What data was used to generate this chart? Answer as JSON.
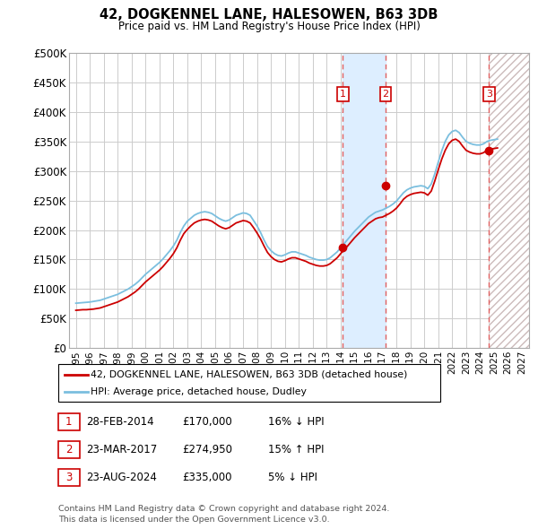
{
  "title": "42, DOGKENNEL LANE, HALESOWEN, B63 3DB",
  "subtitle": "Price paid vs. HM Land Registry's House Price Index (HPI)",
  "ylim": [
    0,
    500000
  ],
  "yticks": [
    0,
    50000,
    100000,
    150000,
    200000,
    250000,
    300000,
    350000,
    400000,
    450000,
    500000
  ],
  "xlim_start": 1994.5,
  "xlim_end": 2027.5,
  "background_color": "#ffffff",
  "grid_color": "#cccccc",
  "hpi_line_color": "#7bbfdf",
  "price_line_color": "#cc0000",
  "sale_marker_color": "#cc0000",
  "transaction_dates": [
    2014.163,
    2017.228,
    2024.644
  ],
  "transaction_prices": [
    170000,
    274950,
    335000
  ],
  "transaction_labels": [
    "1",
    "2",
    "3"
  ],
  "dashed_line_color": "#e06060",
  "shade_color": "#ddeeff",
  "legend_house_label": "42, DOGKENNEL LANE, HALESOWEN, B63 3DB (detached house)",
  "legend_hpi_label": "HPI: Average price, detached house, Dudley",
  "table_entries": [
    {
      "label": "1",
      "date": "28-FEB-2014",
      "price": "£170,000",
      "hpi": "16% ↓ HPI"
    },
    {
      "label": "2",
      "date": "23-MAR-2017",
      "price": "£274,950",
      "hpi": "15% ↑ HPI"
    },
    {
      "label": "3",
      "date": "23-AUG-2024",
      "price": "£335,000",
      "hpi": "5% ↓ HPI"
    }
  ],
  "footnote": "Contains HM Land Registry data © Crown copyright and database right 2024.\nThis data is licensed under the Open Government Licence v3.0.",
  "hpi_data_x": [
    1995.0,
    1995.25,
    1995.5,
    1995.75,
    1996.0,
    1996.25,
    1996.5,
    1996.75,
    1997.0,
    1997.25,
    1997.5,
    1997.75,
    1998.0,
    1998.25,
    1998.5,
    1998.75,
    1999.0,
    1999.25,
    1999.5,
    1999.75,
    2000.0,
    2000.25,
    2000.5,
    2000.75,
    2001.0,
    2001.25,
    2001.5,
    2001.75,
    2002.0,
    2002.25,
    2002.5,
    2002.75,
    2003.0,
    2003.25,
    2003.5,
    2003.75,
    2004.0,
    2004.25,
    2004.5,
    2004.75,
    2005.0,
    2005.25,
    2005.5,
    2005.75,
    2006.0,
    2006.25,
    2006.5,
    2006.75,
    2007.0,
    2007.25,
    2007.5,
    2007.75,
    2008.0,
    2008.25,
    2008.5,
    2008.75,
    2009.0,
    2009.25,
    2009.5,
    2009.75,
    2010.0,
    2010.25,
    2010.5,
    2010.75,
    2011.0,
    2011.25,
    2011.5,
    2011.75,
    2012.0,
    2012.25,
    2012.5,
    2012.75,
    2013.0,
    2013.25,
    2013.5,
    2013.75,
    2014.0,
    2014.25,
    2014.5,
    2014.75,
    2015.0,
    2015.25,
    2015.5,
    2015.75,
    2016.0,
    2016.25,
    2016.5,
    2016.75,
    2017.0,
    2017.25,
    2017.5,
    2017.75,
    2018.0,
    2018.25,
    2018.5,
    2018.75,
    2019.0,
    2019.25,
    2019.5,
    2019.75,
    2020.0,
    2020.25,
    2020.5,
    2020.75,
    2021.0,
    2021.25,
    2021.5,
    2021.75,
    2022.0,
    2022.25,
    2022.5,
    2022.75,
    2023.0,
    2023.25,
    2023.5,
    2023.75,
    2024.0,
    2024.25,
    2024.5,
    2024.75,
    2025.0,
    2025.25
  ],
  "hpi_data_y": [
    76000,
    76500,
    77000,
    77500,
    78000,
    79000,
    80000,
    81000,
    83000,
    85000,
    87000,
    89000,
    91000,
    94000,
    97000,
    100000,
    104000,
    108000,
    113000,
    119000,
    125000,
    130000,
    135000,
    140000,
    145000,
    151000,
    158000,
    165000,
    173000,
    183000,
    196000,
    207000,
    215000,
    220000,
    225000,
    228000,
    230000,
    231000,
    230000,
    228000,
    224000,
    220000,
    217000,
    215000,
    217000,
    221000,
    225000,
    227000,
    229000,
    228000,
    225000,
    216000,
    207000,
    196000,
    183000,
    172000,
    165000,
    160000,
    157000,
    156000,
    158000,
    161000,
    163000,
    163000,
    161000,
    159000,
    157000,
    154000,
    152000,
    150000,
    149000,
    149000,
    150000,
    153000,
    158000,
    163000,
    170000,
    177000,
    184000,
    191000,
    198000,
    204000,
    210000,
    216000,
    222000,
    226000,
    230000,
    232000,
    234000,
    237000,
    240000,
    244000,
    249000,
    256000,
    263000,
    268000,
    271000,
    273000,
    274000,
    275000,
    274000,
    270000,
    278000,
    295000,
    315000,
    334000,
    350000,
    361000,
    367000,
    369000,
    365000,
    357000,
    350000,
    347000,
    345000,
    344000,
    344000,
    346000,
    350000,
    352000,
    353000,
    354000
  ],
  "price_data_x": [
    1995.0,
    1995.25,
    1995.5,
    1995.75,
    1996.0,
    1996.25,
    1996.5,
    1996.75,
    1997.0,
    1997.25,
    1997.5,
    1997.75,
    1998.0,
    1998.25,
    1998.5,
    1998.75,
    1999.0,
    1999.25,
    1999.5,
    1999.75,
    2000.0,
    2000.25,
    2000.5,
    2000.75,
    2001.0,
    2001.25,
    2001.5,
    2001.75,
    2002.0,
    2002.25,
    2002.5,
    2002.75,
    2003.0,
    2003.25,
    2003.5,
    2003.75,
    2004.0,
    2004.25,
    2004.5,
    2004.75,
    2005.0,
    2005.25,
    2005.5,
    2005.75,
    2006.0,
    2006.25,
    2006.5,
    2006.75,
    2007.0,
    2007.25,
    2007.5,
    2007.75,
    2008.0,
    2008.25,
    2008.5,
    2008.75,
    2009.0,
    2009.25,
    2009.5,
    2009.75,
    2010.0,
    2010.25,
    2010.5,
    2010.75,
    2011.0,
    2011.25,
    2011.5,
    2011.75,
    2012.0,
    2012.25,
    2012.5,
    2012.75,
    2013.0,
    2013.25,
    2013.5,
    2013.75,
    2014.0,
    2014.25,
    2014.5,
    2014.75,
    2015.0,
    2015.25,
    2015.5,
    2015.75,
    2016.0,
    2016.25,
    2016.5,
    2016.75,
    2017.0,
    2017.25,
    2017.5,
    2017.75,
    2018.0,
    2018.25,
    2018.5,
    2018.75,
    2019.0,
    2019.25,
    2019.5,
    2019.75,
    2020.0,
    2020.25,
    2020.5,
    2020.75,
    2021.0,
    2021.25,
    2021.5,
    2021.75,
    2022.0,
    2022.25,
    2022.5,
    2022.75,
    2023.0,
    2023.25,
    2023.5,
    2023.75,
    2024.0,
    2024.25,
    2024.5,
    2024.75,
    2025.0,
    2025.25
  ],
  "price_data_y": [
    64000,
    64500,
    65000,
    65000,
    65500,
    66000,
    67000,
    68000,
    70000,
    72000,
    74000,
    76000,
    78000,
    81000,
    84000,
    87000,
    91000,
    95000,
    100000,
    106000,
    112000,
    117000,
    122000,
    127000,
    132000,
    138000,
    145000,
    152000,
    160000,
    170000,
    183000,
    194000,
    201000,
    207000,
    212000,
    215000,
    217000,
    218000,
    217000,
    215000,
    211000,
    207000,
    204000,
    202000,
    204000,
    208000,
    212000,
    214000,
    216000,
    215000,
    212000,
    204000,
    195000,
    185000,
    173000,
    162000,
    155000,
    150000,
    147000,
    146000,
    148000,
    151000,
    153000,
    153000,
    151000,
    149000,
    147000,
    144000,
    142000,
    140000,
    139000,
    139000,
    140000,
    143000,
    148000,
    153000,
    160000,
    167000,
    173000,
    180000,
    187000,
    193000,
    199000,
    205000,
    211000,
    215000,
    219000,
    221000,
    222000,
    225000,
    228000,
    232000,
    237000,
    244000,
    252000,
    257000,
    260000,
    262000,
    263000,
    264000,
    263000,
    259000,
    266000,
    283000,
    302000,
    320000,
    335000,
    346000,
    352000,
    354000,
    350000,
    342000,
    335000,
    332000,
    330000,
    329000,
    329000,
    331000,
    335000,
    337000,
    338000,
    339000
  ]
}
